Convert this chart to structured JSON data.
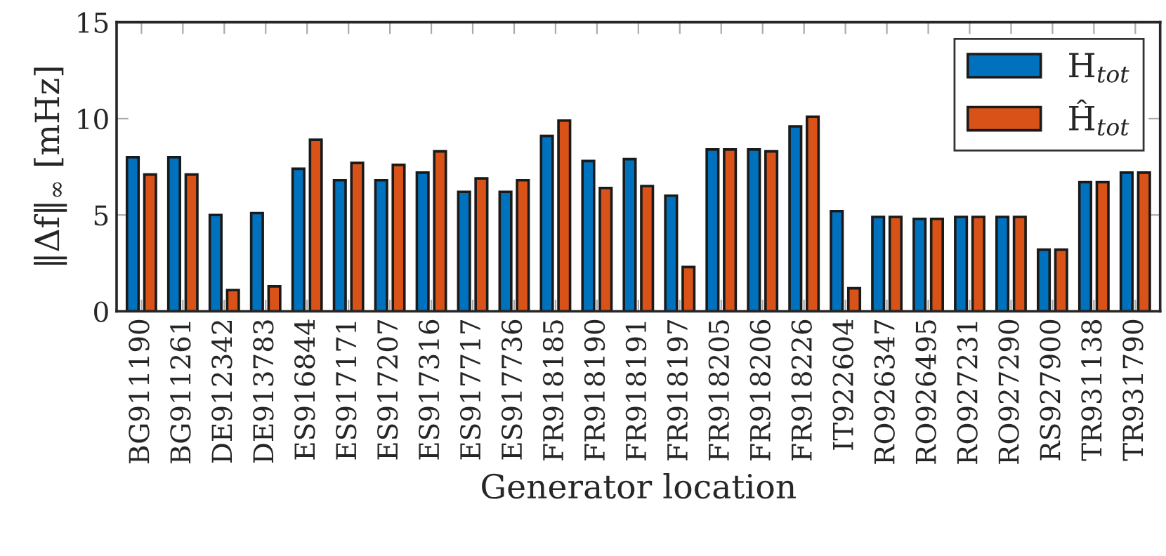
{
  "chart_data": {
    "type": "bar",
    "xlabel": "Generator location",
    "ylabel": "‖Δf‖$_{∞}$ [mHz]",
    "categories": [
      "BG911190",
      "BG911261",
      "DE912342",
      "DE913783",
      "ES916844",
      "ES917171",
      "ES917207",
      "ES917316",
      "ES917717",
      "ES917736",
      "FR918185",
      "FR918190",
      "FR918191",
      "FR918197",
      "FR918205",
      "FR918206",
      "FR918226",
      "IT922604",
      "RO926347",
      "RO926495",
      "RO927231",
      "RO927290",
      "RS927900",
      "TR931138",
      "TR931790"
    ],
    "series": [
      {
        "name": "H$_{tot}$",
        "color": "#0072bd",
        "values": [
          8.0,
          8.0,
          5.0,
          5.1,
          7.4,
          6.8,
          6.8,
          7.2,
          6.2,
          6.2,
          9.1,
          7.8,
          7.9,
          6.0,
          8.4,
          8.4,
          9.6,
          5.2,
          4.9,
          4.8,
          4.9,
          4.9,
          3.2,
          6.7,
          7.2
        ]
      },
      {
        "name": "Ĥ$_{tot}$",
        "color": "#d95319",
        "values": [
          7.1,
          7.1,
          1.1,
          1.3,
          8.9,
          7.7,
          7.6,
          8.3,
          6.9,
          6.8,
          9.9,
          6.4,
          6.5,
          2.3,
          8.4,
          8.3,
          10.1,
          1.2,
          4.9,
          4.8,
          4.9,
          4.9,
          3.2,
          6.7,
          7.2
        ]
      }
    ],
    "ylim": [
      0,
      15
    ],
    "yticks": [
      0,
      5,
      10,
      15
    ],
    "grid": false,
    "legend": "top right"
  }
}
